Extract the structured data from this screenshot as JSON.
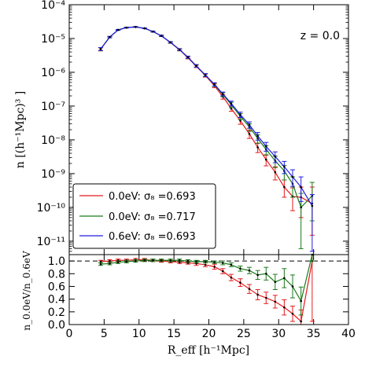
{
  "chart_data": [
    {
      "type": "line",
      "yscale": "log",
      "annotation": "z = 0.0",
      "ylabel": "n [(h⁻¹Mpc)³ ]",
      "xlim": [
        0,
        40
      ],
      "ylim": [
        4e-12,
        0.0001
      ],
      "yticks": [
        {
          "value": 0.0001,
          "label": "10⁻⁴"
        },
        {
          "value": 1e-05,
          "label": "10⁻⁵"
        },
        {
          "value": 1e-06,
          "label": "10⁻⁶"
        },
        {
          "value": 1e-07,
          "label": "10⁻⁷"
        },
        {
          "value": 1e-08,
          "label": "10⁻⁸"
        },
        {
          "value": 1e-09,
          "label": "10⁻⁹"
        },
        {
          "value": 1e-10,
          "label": "10⁻¹⁰"
        },
        {
          "value": 1e-11,
          "label": "10⁻¹¹"
        }
      ],
      "legend_placement": "lower-left",
      "series": [
        {
          "name": "0.0eV: σ₈ =0.693",
          "color": "#e41a1c",
          "x": [
            4.5,
            5.8,
            7.0,
            8.2,
            9.5,
            10.8,
            12.0,
            13.2,
            14.5,
            15.8,
            17.0,
            18.2,
            19.5,
            20.8,
            22.0,
            23.2,
            24.5,
            25.8,
            27.0,
            28.2,
            29.5,
            30.8,
            32.0,
            33.2,
            34.8
          ],
          "y": [
            4.8e-06,
            1.1e-05,
            1.8e-05,
            2.1e-05,
            2.2e-05,
            2e-05,
            1.6e-05,
            1.2e-05,
            7.6e-06,
            4.6e-06,
            2.7e-06,
            1.5e-06,
            8e-07,
            4e-07,
            1.9e-07,
            8.5e-08,
            3.7e-08,
            1.5e-08,
            6e-09,
            2.6e-09,
            1.1e-09,
            4e-10,
            2.1e-10,
            2e-10,
            1.3e-10
          ],
          "err_lo": [
            4.3e-06,
            1.05e-05,
            1.75e-05,
            2.05e-05,
            2.15e-05,
            1.95e-05,
            1.55e-05,
            1.15e-05,
            7.2e-06,
            4.3e-06,
            2.5e-06,
            1.38e-06,
            7.2e-07,
            3.5e-07,
            1.6e-07,
            7e-08,
            2.9e-08,
            1.1e-08,
            4.2e-09,
            1.7e-09,
            6.5e-10,
            2e-10,
            8e-11,
            5e-11,
            1.5e-11
          ],
          "err_hi": [
            5.3e-06,
            1.15e-05,
            1.85e-05,
            2.15e-05,
            2.25e-05,
            2.05e-05,
            1.65e-05,
            1.25e-05,
            8e-06,
            4.9e-06,
            2.9e-06,
            1.62e-06,
            8.8e-07,
            4.5e-07,
            2.2e-07,
            1e-07,
            4.5e-08,
            1.9e-08,
            7.8e-09,
            3.5e-09,
            1.6e-09,
            6.5e-10,
            3.8e-10,
            4e-10,
            4e-10
          ]
        },
        {
          "name": "0.0eV: σ₈ =0.717",
          "color": "#1a7a1a",
          "x": [
            4.5,
            5.8,
            7.0,
            8.2,
            9.5,
            10.8,
            12.0,
            13.2,
            14.5,
            15.8,
            17.0,
            18.2,
            19.5,
            20.8,
            22.0,
            23.2,
            24.5,
            25.8,
            27.0,
            28.2,
            29.5,
            30.8,
            32.0,
            33.2,
            34.8
          ],
          "y": [
            4.9e-06,
            1.1e-05,
            1.8e-05,
            2.1e-05,
            2.2e-05,
            2e-05,
            1.6e-05,
            1.2e-05,
            7.7e-06,
            4.7e-06,
            2.8e-06,
            1.55e-06,
            8.3e-07,
            4.3e-07,
            2.2e-07,
            1.1e-07,
            5e-08,
            2.4e-08,
            1.1e-08,
            5.2e-09,
            2.4e-09,
            1.2e-09,
            5e-10,
            1e-10,
            2.2e-10
          ],
          "err_lo": [
            4.4e-06,
            1.05e-05,
            1.75e-05,
            2.05e-05,
            2.15e-05,
            1.95e-05,
            1.55e-05,
            1.15e-05,
            7.3e-06,
            4.4e-06,
            2.6e-06,
            1.42e-06,
            7.5e-07,
            3.8e-07,
            1.9e-07,
            9e-08,
            4e-08,
            1.8e-08,
            8e-09,
            3.6e-09,
            1.5e-09,
            6.5e-10,
            2e-10,
            6e-12,
            4e-11
          ],
          "err_hi": [
            5.4e-06,
            1.15e-05,
            1.85e-05,
            2.15e-05,
            2.25e-05,
            2.05e-05,
            1.65e-05,
            1.25e-05,
            8.1e-06,
            5e-06,
            3e-06,
            1.68e-06,
            9.1e-07,
            4.8e-07,
            2.5e-07,
            1.3e-07,
            6e-08,
            3e-08,
            1.4e-08,
            6.8e-09,
            3.3e-09,
            1.75e-09,
            8e-10,
            2.6e-10,
            5.5e-10
          ]
        },
        {
          "name": "0.6eV: σ₈ =0.693",
          "color": "#1f1fdf",
          "x": [
            4.5,
            5.8,
            7.0,
            8.2,
            9.5,
            10.8,
            12.0,
            13.2,
            14.5,
            15.8,
            17.0,
            18.2,
            19.5,
            20.8,
            22.0,
            23.2,
            24.5,
            25.8,
            27.0,
            28.2,
            29.5,
            30.8,
            32.0,
            33.2,
            34.8
          ],
          "y": [
            4.9e-06,
            1.1e-05,
            1.8e-05,
            2.1e-05,
            2.2e-05,
            2e-05,
            1.6e-05,
            1.2e-05,
            7.7e-06,
            4.7e-06,
            2.8e-06,
            1.55e-06,
            8.3e-07,
            4.4e-07,
            2.3e-07,
            1.2e-07,
            5.6e-08,
            2.8e-08,
            1.3e-08,
            6.4e-09,
            3.2e-09,
            1.6e-09,
            8e-10,
            4e-10,
            1.1e-10
          ],
          "err_lo": [
            4.4e-06,
            1.05e-05,
            1.75e-05,
            2.05e-05,
            2.15e-05,
            1.95e-05,
            1.55e-05,
            1.15e-05,
            7.3e-06,
            4.4e-06,
            2.6e-06,
            1.42e-06,
            7.5e-07,
            3.9e-07,
            2e-07,
            1e-07,
            4.6e-08,
            2.2e-08,
            9.8e-09,
            4.6e-09,
            2.1e-09,
            1e-09,
            4.2e-10,
            1.5e-10,
            5e-12
          ],
          "err_hi": [
            5.4e-06,
            1.15e-05,
            1.85e-05,
            2.15e-05,
            2.25e-05,
            2.05e-05,
            1.65e-05,
            1.25e-05,
            8.1e-06,
            5e-06,
            3e-06,
            1.68e-06,
            9.1e-07,
            4.9e-07,
            2.6e-07,
            1.4e-07,
            6.6e-08,
            3.4e-08,
            1.65e-08,
            8.4e-09,
            4.4e-09,
            2.3e-09,
            1.3e-09,
            8e-10,
            2.4e-10
          ]
        }
      ]
    },
    {
      "type": "line",
      "xlabel": "R_eff [h⁻¹Mpc]",
      "ylabel": "n_0.0eV/n_0.6eV",
      "xlim": [
        0,
        40
      ],
      "ylim": [
        0.0,
        1.1
      ],
      "xticks": [
        0,
        5,
        10,
        15,
        20,
        25,
        30,
        35,
        40
      ],
      "yticks": [
        {
          "value": 0.0,
          "label": "0.0"
        },
        {
          "value": 0.2,
          "label": "0.2"
        },
        {
          "value": 0.4,
          "label": "0.4"
        },
        {
          "value": 0.6,
          "label": "0.6"
        },
        {
          "value": 0.8,
          "label": "0.8"
        },
        {
          "value": 1.0,
          "label": "1.0"
        }
      ],
      "reference_line": 1.0,
      "series": [
        {
          "name": "0.0eV: σ₈ =0.693",
          "color": "#e41a1c",
          "x": [
            4.5,
            5.8,
            7.0,
            8.2,
            9.5,
            10.8,
            12.0,
            13.2,
            14.5,
            15.8,
            17.0,
            18.2,
            19.5,
            20.8,
            22.0,
            23.2,
            24.5,
            25.8,
            27.0,
            28.2,
            29.5,
            30.8,
            32.0,
            33.2,
            34.8
          ],
          "y": [
            0.99,
            1.0,
            1.01,
            1.01,
            1.02,
            1.02,
            1.01,
            1.0,
            0.99,
            0.98,
            0.97,
            0.96,
            0.94,
            0.91,
            0.84,
            0.74,
            0.66,
            0.56,
            0.47,
            0.42,
            0.36,
            0.27,
            0.17,
            0.05,
            1.0
          ],
          "err_lo": [
            0.97,
            0.98,
            0.99,
            0.99,
            1.0,
            1.0,
            0.99,
            0.98,
            0.97,
            0.96,
            0.95,
            0.93,
            0.91,
            0.87,
            0.8,
            0.69,
            0.6,
            0.49,
            0.39,
            0.33,
            0.26,
            0.15,
            0.05,
            0.0,
            0.05
          ],
          "err_hi": [
            1.01,
            1.02,
            1.03,
            1.03,
            1.04,
            1.04,
            1.03,
            1.02,
            1.01,
            1.0,
            0.99,
            0.99,
            0.97,
            0.95,
            0.88,
            0.79,
            0.72,
            0.63,
            0.55,
            0.51,
            0.46,
            0.39,
            0.29,
            0.23,
            1.1
          ]
        },
        {
          "name": "0.0eV: σ₈ =0.717",
          "color": "#1a7a1a",
          "x": [
            4.5,
            5.8,
            7.0,
            8.2,
            9.5,
            10.8,
            12.0,
            13.2,
            14.5,
            15.8,
            17.0,
            18.2,
            19.5,
            20.8,
            22.0,
            23.2,
            24.5,
            25.8,
            27.0,
            28.2,
            29.5,
            30.8,
            32.0,
            33.2,
            34.8
          ],
          "y": [
            0.95,
            0.96,
            0.98,
            0.99,
            1.0,
            1.01,
            1.01,
            1.01,
            1.01,
            1.01,
            1.0,
            0.99,
            0.99,
            0.98,
            0.97,
            0.94,
            0.88,
            0.85,
            0.78,
            0.8,
            0.67,
            0.73,
            0.6,
            0.37,
            1.1
          ],
          "err_lo": [
            0.93,
            0.94,
            0.96,
            0.97,
            0.98,
            0.99,
            0.99,
            0.99,
            0.99,
            0.99,
            0.98,
            0.97,
            0.97,
            0.96,
            0.94,
            0.91,
            0.84,
            0.8,
            0.71,
            0.7,
            0.55,
            0.58,
            0.42,
            0.15,
            1.0
          ],
          "err_hi": [
            0.97,
            0.98,
            1.0,
            1.01,
            1.02,
            1.03,
            1.03,
            1.03,
            1.03,
            1.03,
            1.02,
            1.01,
            1.01,
            1.0,
            1.0,
            0.97,
            0.92,
            0.9,
            0.85,
            0.9,
            0.79,
            0.88,
            0.78,
            0.59,
            1.1
          ]
        }
      ]
    }
  ]
}
